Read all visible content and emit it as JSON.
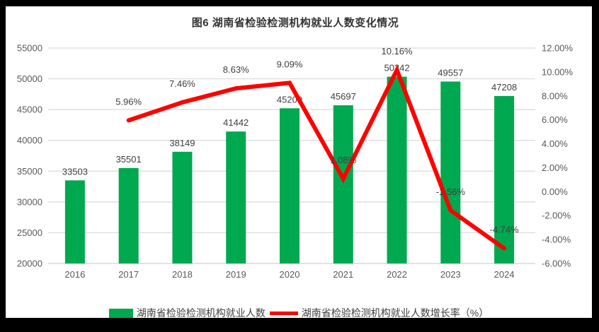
{
  "page": {
    "background": "#000000",
    "panel_background": "#ffffff"
  },
  "title": "图6 湖南省检验检测机构就业人数变化情况",
  "chart_data": {
    "type": "bar",
    "subtype": "combo-bar-line",
    "title": "图6 湖南省检验检测机构就业人数变化情况",
    "categories": [
      "2016",
      "2017",
      "2018",
      "2019",
      "2020",
      "2021",
      "2022",
      "2023",
      "2024"
    ],
    "series": [
      {
        "name": "湖南省检验检测机构就业人数",
        "type": "bar",
        "axis": "left",
        "color": "#00A84F",
        "values": [
          33503,
          35501,
          38149,
          41442,
          45209,
          45697,
          50342,
          49557,
          47208
        ],
        "labels": [
          "33503",
          "35501",
          "38149",
          "41442",
          "45209",
          "45697",
          "50342",
          "49557",
          "47208"
        ]
      },
      {
        "name": "湖南省检验检测机构就业人数增长率（%）",
        "type": "line",
        "axis": "right",
        "color": "#FF0000",
        "values": [
          null,
          5.96,
          7.46,
          8.63,
          9.09,
          1.08,
          10.16,
          -1.56,
          -4.74
        ],
        "labels": [
          null,
          "5.96%",
          "7.46%",
          "8.63%",
          "9.09%",
          "1.08%",
          "10.16%",
          "-1.56%",
          "-4.74%"
        ]
      }
    ],
    "left_axis": {
      "min": 20000,
      "max": 55000,
      "step": 5000,
      "ticks_top_to_bottom": [
        "55000",
        "50000",
        "45000",
        "40000",
        "35000",
        "30000",
        "25000",
        "20000"
      ]
    },
    "right_axis": {
      "min": -6,
      "max": 12,
      "step": 2,
      "ticks_top_to_bottom": [
        "12.00%",
        "10.00%",
        "8.00%",
        "6.00%",
        "4.00%",
        "2.00%",
        "0.00%",
        "-2.00%",
        "-4.00%",
        "-6.00%"
      ]
    },
    "grid": true,
    "gridline_color": "#D9D9D9",
    "axis_label_color": "#595959",
    "data_label_color": "#404040",
    "legend_position": "bottom"
  },
  "legend": {
    "items": [
      {
        "label": "湖南省检验检测机构就业人数",
        "marker": "rect",
        "color": "#00A84F"
      },
      {
        "label": "湖南省检验检测机构就业人数增长率（%）",
        "marker": "line",
        "color": "#FF0000"
      }
    ]
  }
}
